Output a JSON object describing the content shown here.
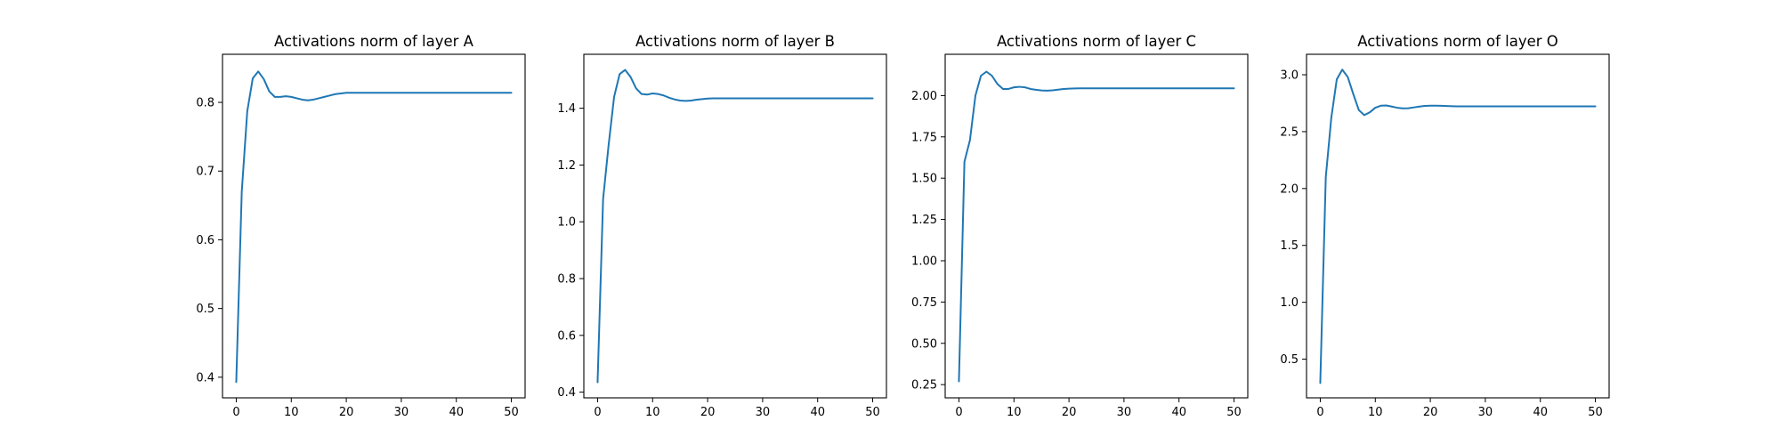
{
  "line_color": "#1f77b4",
  "chart_data": [
    {
      "type": "line",
      "title": "Activations norm of layer A",
      "xlabel": "",
      "ylabel": "",
      "xlim": [
        -2.5,
        52.5
      ],
      "ylim": [
        0.37,
        0.87
      ],
      "xticks": [
        0,
        10,
        20,
        30,
        40,
        50
      ],
      "yticks": [
        0.4,
        0.5,
        0.6,
        0.7,
        0.8
      ],
      "ytick_labels": [
        "0.4",
        "0.5",
        "0.6",
        "0.7",
        "0.8"
      ],
      "grid": false,
      "x": [
        0,
        1,
        2,
        3,
        4,
        5,
        6,
        7,
        8,
        9,
        10,
        11,
        12,
        13,
        14,
        15,
        16,
        17,
        18,
        19,
        20,
        21,
        22,
        23,
        24,
        25,
        26,
        27,
        28,
        29,
        30,
        31,
        32,
        33,
        34,
        35,
        36,
        37,
        38,
        39,
        40,
        41,
        42,
        43,
        44,
        45,
        46,
        47,
        48,
        49,
        50
      ],
      "y": [
        0.393,
        0.67,
        0.787,
        0.835,
        0.845,
        0.834,
        0.816,
        0.808,
        0.808,
        0.809,
        0.808,
        0.806,
        0.804,
        0.803,
        0.804,
        0.806,
        0.808,
        0.81,
        0.812,
        0.813,
        0.814,
        0.814,
        0.814,
        0.814,
        0.814,
        0.814,
        0.814,
        0.814,
        0.814,
        0.814,
        0.814,
        0.814,
        0.814,
        0.814,
        0.814,
        0.814,
        0.814,
        0.814,
        0.814,
        0.814,
        0.814,
        0.814,
        0.814,
        0.814,
        0.814,
        0.814,
        0.814,
        0.814,
        0.814,
        0.814,
        0.814
      ]
    },
    {
      "type": "line",
      "title": "Activations norm of layer B",
      "xlabel": "",
      "ylabel": "",
      "xlim": [
        -2.5,
        52.5
      ],
      "ylim": [
        0.38,
        1.59
      ],
      "xticks": [
        0,
        10,
        20,
        30,
        40,
        50
      ],
      "yticks": [
        0.4,
        0.6,
        0.8,
        1.0,
        1.2,
        1.4
      ],
      "ytick_labels": [
        "0.4",
        "0.6",
        "0.8",
        "1.0",
        "1.2",
        "1.4"
      ],
      "grid": false,
      "x": [
        0,
        1,
        2,
        3,
        4,
        5,
        6,
        7,
        8,
        9,
        10,
        11,
        12,
        13,
        14,
        15,
        16,
        17,
        18,
        19,
        20,
        21,
        22,
        23,
        24,
        25,
        26,
        27,
        28,
        29,
        30,
        31,
        32,
        33,
        34,
        35,
        36,
        37,
        38,
        39,
        40,
        41,
        42,
        43,
        44,
        45,
        46,
        47,
        48,
        49,
        50
      ],
      "y": [
        0.435,
        1.08,
        1.27,
        1.44,
        1.52,
        1.535,
        1.51,
        1.47,
        1.45,
        1.448,
        1.452,
        1.45,
        1.445,
        1.437,
        1.431,
        1.427,
        1.426,
        1.427,
        1.43,
        1.432,
        1.434,
        1.435,
        1.435,
        1.435,
        1.435,
        1.435,
        1.435,
        1.435,
        1.435,
        1.435,
        1.435,
        1.435,
        1.435,
        1.435,
        1.435,
        1.435,
        1.435,
        1.435,
        1.435,
        1.435,
        1.435,
        1.435,
        1.435,
        1.435,
        1.435,
        1.435,
        1.435,
        1.435,
        1.435,
        1.435,
        1.435
      ]
    },
    {
      "type": "line",
      "title": "Activations norm of layer C",
      "xlabel": "",
      "ylabel": "",
      "xlim": [
        -2.5,
        52.5
      ],
      "ylim": [
        0.17,
        2.25
      ],
      "xticks": [
        0,
        10,
        20,
        30,
        40,
        50
      ],
      "yticks": [
        0.25,
        0.5,
        0.75,
        1.0,
        1.25,
        1.5,
        1.75,
        2.0
      ],
      "ytick_labels": [
        "0.25",
        "0.50",
        "0.75",
        "1.00",
        "1.25",
        "1.50",
        "1.75",
        "2.00"
      ],
      "grid": false,
      "x": [
        0,
        1,
        2,
        3,
        4,
        5,
        6,
        7,
        8,
        9,
        10,
        11,
        12,
        13,
        14,
        15,
        16,
        17,
        18,
        19,
        20,
        21,
        22,
        23,
        24,
        25,
        26,
        27,
        28,
        29,
        30,
        31,
        32,
        33,
        34,
        35,
        36,
        37,
        38,
        39,
        40,
        41,
        42,
        43,
        44,
        45,
        46,
        47,
        48,
        49,
        50
      ],
      "y": [
        0.27,
        1.6,
        1.73,
        2.0,
        2.12,
        2.145,
        2.12,
        2.07,
        2.04,
        2.04,
        2.05,
        2.053,
        2.05,
        2.04,
        2.035,
        2.031,
        2.03,
        2.032,
        2.036,
        2.04,
        2.042,
        2.043,
        2.044,
        2.044,
        2.044,
        2.044,
        2.044,
        2.044,
        2.044,
        2.044,
        2.044,
        2.044,
        2.044,
        2.044,
        2.044,
        2.044,
        2.044,
        2.044,
        2.044,
        2.044,
        2.044,
        2.044,
        2.044,
        2.044,
        2.044,
        2.044,
        2.044,
        2.044,
        2.044,
        2.044,
        2.044
      ]
    },
    {
      "type": "line",
      "title": "Activations norm of layer O",
      "xlabel": "",
      "ylabel": "",
      "xlim": [
        -2.5,
        52.5
      ],
      "ylim": [
        0.16,
        3.18
      ],
      "xticks": [
        0,
        10,
        20,
        30,
        40,
        50
      ],
      "yticks": [
        0.5,
        1.0,
        1.5,
        2.0,
        2.5,
        3.0
      ],
      "ytick_labels": [
        "0.5",
        "1.0",
        "1.5",
        "2.0",
        "2.5",
        "3.0"
      ],
      "grid": false,
      "x": [
        0,
        1,
        2,
        3,
        4,
        5,
        6,
        7,
        8,
        9,
        10,
        11,
        12,
        13,
        14,
        15,
        16,
        17,
        18,
        19,
        20,
        21,
        22,
        23,
        24,
        25,
        26,
        27,
        28,
        29,
        30,
        31,
        32,
        33,
        34,
        35,
        36,
        37,
        38,
        39,
        40,
        41,
        42,
        43,
        44,
        45,
        46,
        47,
        48,
        49,
        50
      ],
      "y": [
        0.29,
        2.1,
        2.62,
        2.96,
        3.045,
        2.98,
        2.83,
        2.69,
        2.645,
        2.67,
        2.71,
        2.728,
        2.73,
        2.72,
        2.71,
        2.705,
        2.706,
        2.713,
        2.72,
        2.726,
        2.728,
        2.728,
        2.727,
        2.725,
        2.723,
        2.722,
        2.722,
        2.722,
        2.722,
        2.722,
        2.722,
        2.722,
        2.722,
        2.722,
        2.722,
        2.722,
        2.722,
        2.722,
        2.722,
        2.722,
        2.722,
        2.722,
        2.722,
        2.722,
        2.722,
        2.722,
        2.722,
        2.722,
        2.722,
        2.722,
        2.722
      ]
    }
  ]
}
